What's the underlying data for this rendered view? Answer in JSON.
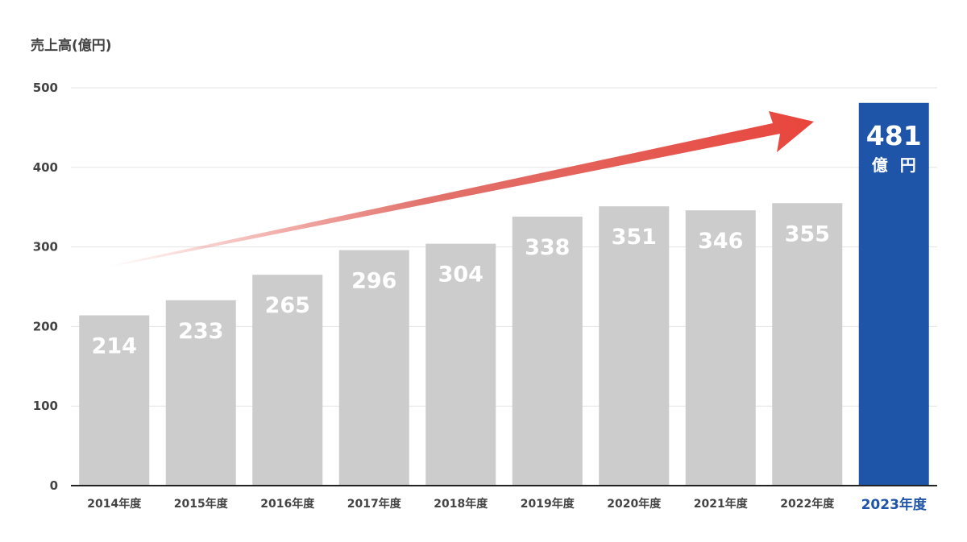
{
  "chart_data": {
    "type": "bar",
    "ylabel": "売上高(億円)",
    "ylim": [
      0,
      500
    ],
    "yticks": [
      0,
      100,
      200,
      300,
      400,
      500
    ],
    "grid": true,
    "categories": [
      "2014年度",
      "2015年度",
      "2016年度",
      "2017年度",
      "2018年度",
      "2019年度",
      "2020年度",
      "2021年度",
      "2022年度",
      "2023年度"
    ],
    "values": [
      214,
      233,
      265,
      296,
      304,
      338,
      351,
      346,
      355,
      481
    ],
    "data_labels": [
      "214",
      "233",
      "265",
      "296",
      "304",
      "338",
      "351",
      "346",
      "355",
      "481"
    ],
    "highlight": {
      "index": 9,
      "value_label": "481",
      "unit_label": "億 円"
    },
    "trend_arrow": true,
    "colors": {
      "bar": "#cccccc",
      "highlight_bar": "#1f55a8",
      "highlight_text": "#1f55a8",
      "arrow": "#e8453c",
      "grid": "#e3e3e3",
      "axis": "#222222"
    }
  }
}
